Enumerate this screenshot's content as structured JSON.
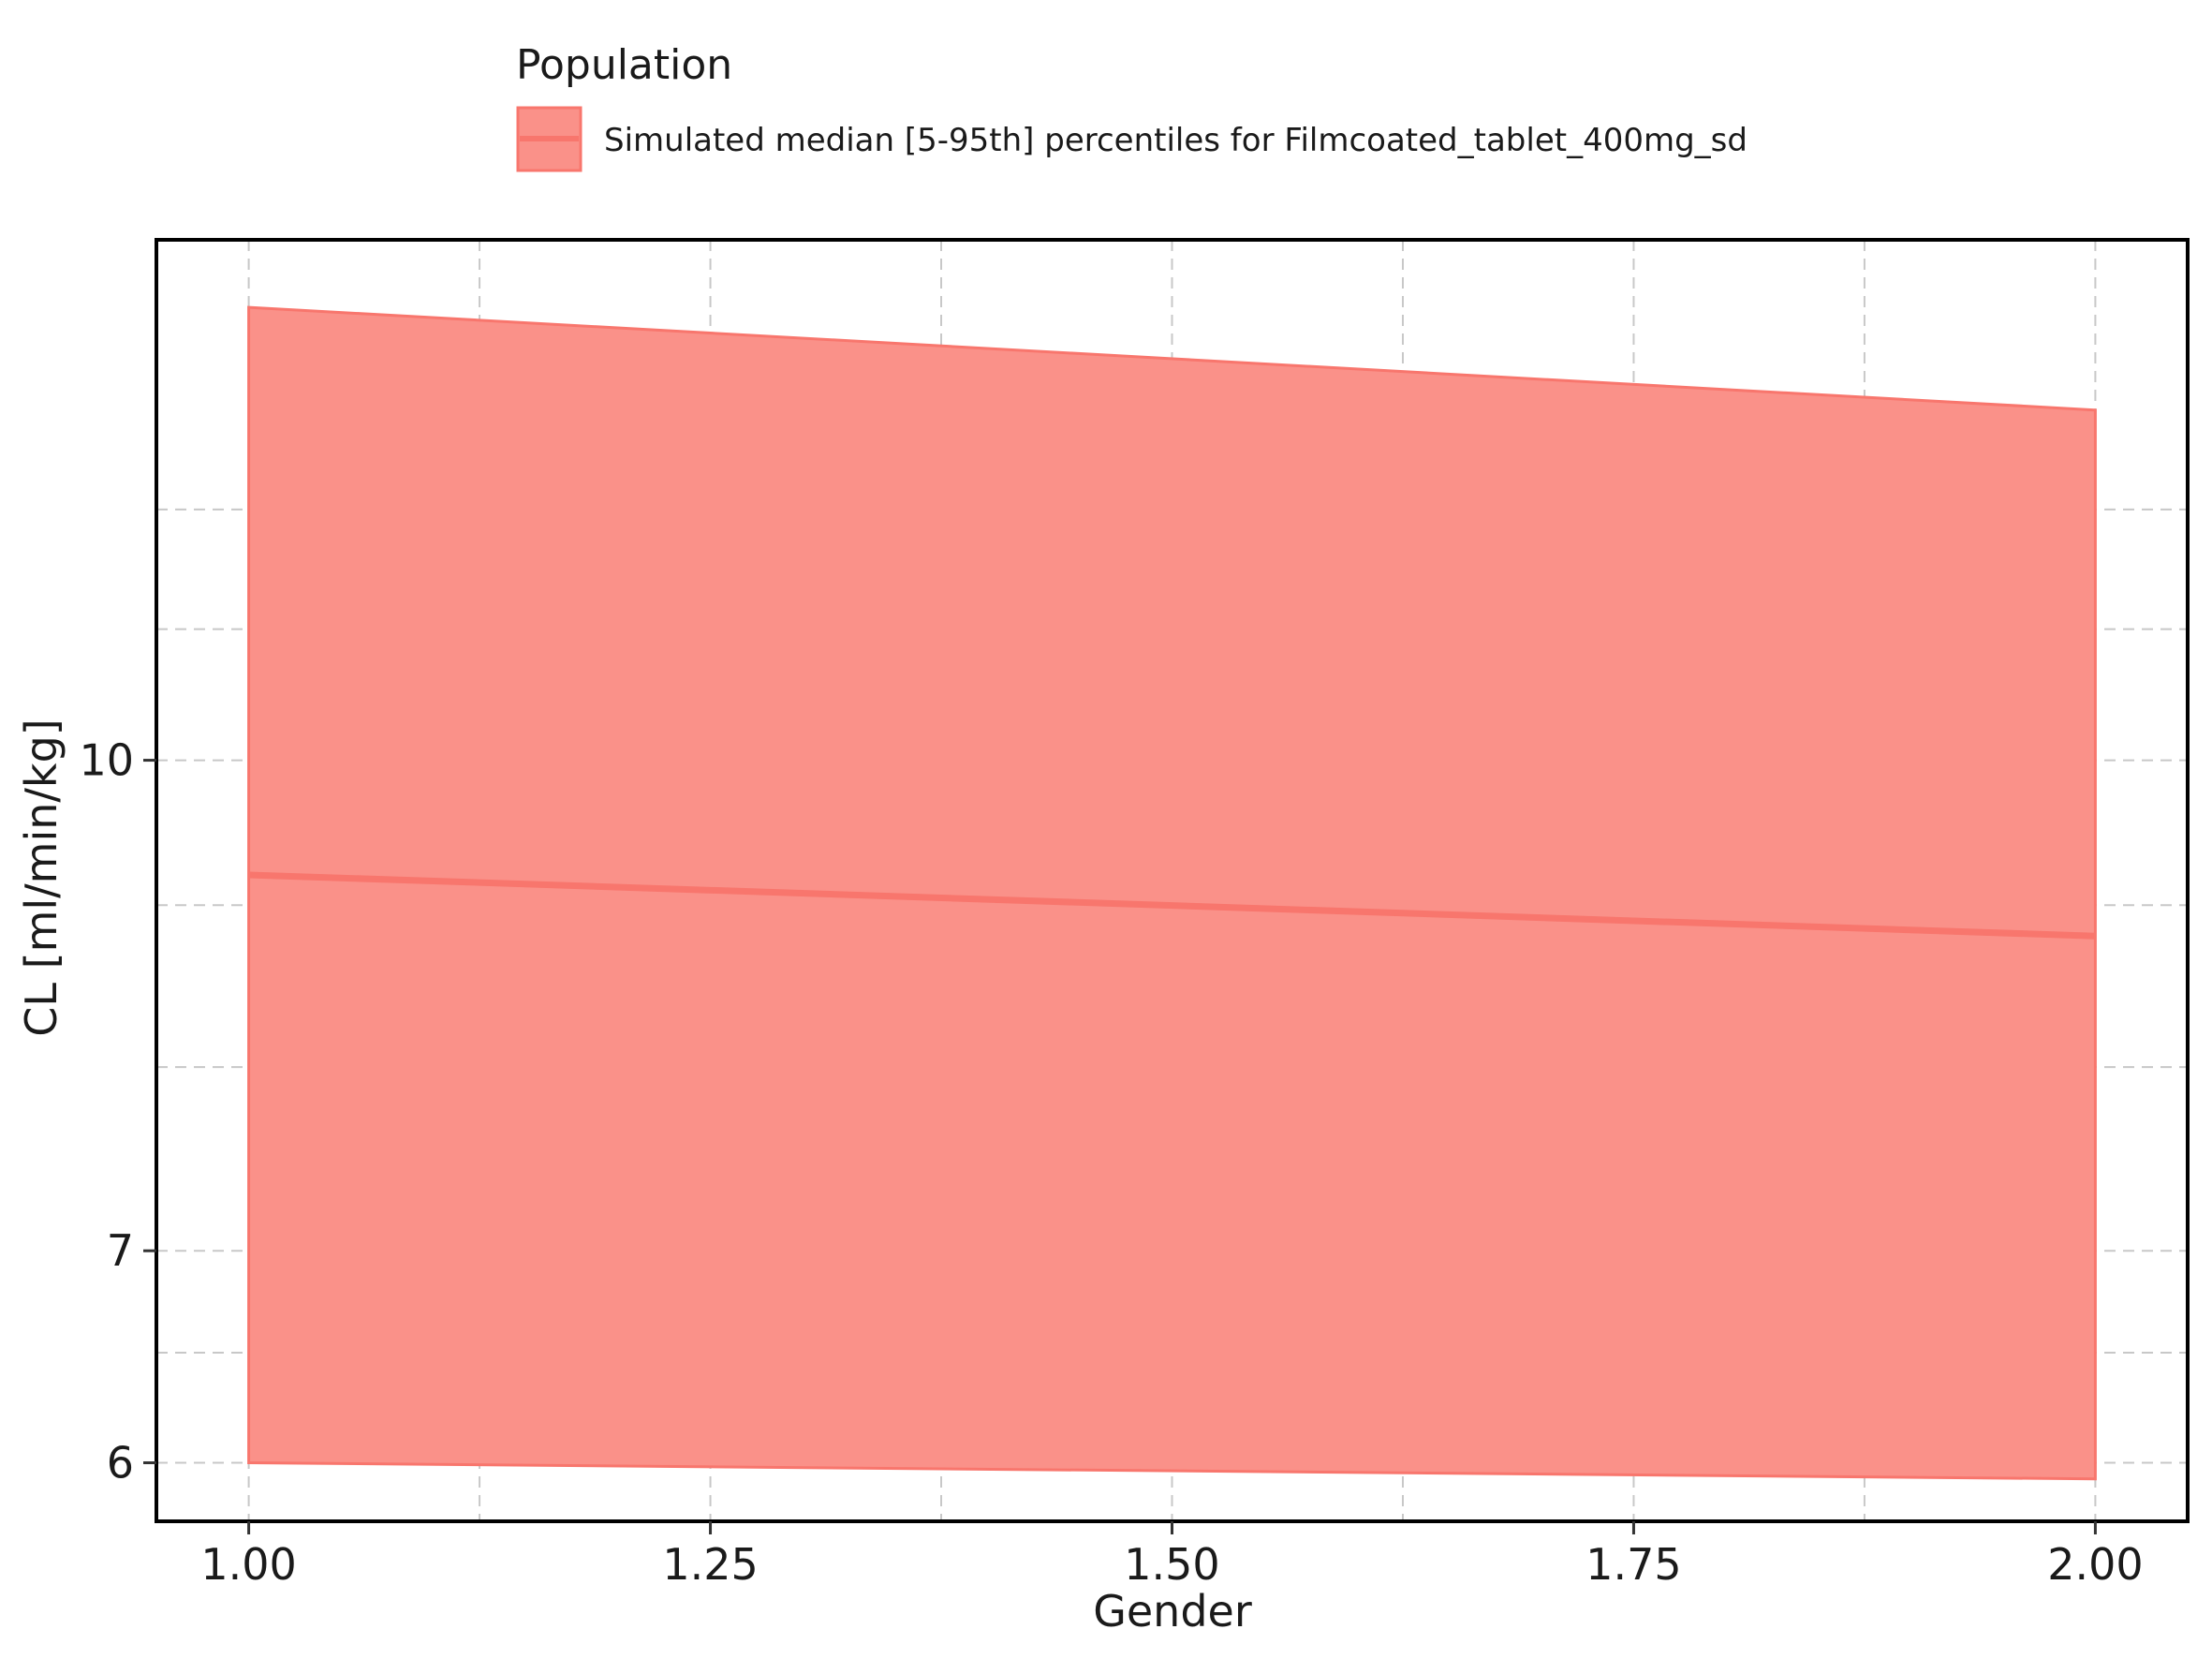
{
  "chart_data": {
    "type": "area",
    "title": "",
    "xlabel": "Gender",
    "ylabel": "CL [ml/min/kg]",
    "yscale": "log",
    "xlim": [
      0.95,
      2.05
    ],
    "ylim": [
      5.75,
      14.6
    ],
    "x_ticks": [
      1.0,
      1.25,
      1.5,
      1.75,
      2.0
    ],
    "x_tick_labels": [
      "1.00",
      "1.25",
      "1.50",
      "1.75",
      "2.00"
    ],
    "y_ticks": [
      6,
      7,
      10
    ],
    "y_tick_labels": [
      "6",
      "7",
      "10"
    ],
    "y_minor_gridlines": [
      6.5,
      8,
      9,
      11,
      12
    ],
    "grid": true,
    "legend": {
      "title": "Population",
      "placement": "top",
      "entries": [
        "Simulated median [5-95th] percentiles for Filmcoated_tablet_400mg_sd"
      ]
    },
    "series": [
      {
        "name": "Simulated median [5-95th] percentiles for Filmcoated_tablet_400mg_sd",
        "x": [
          1.0,
          2.0
        ],
        "median": [
          9.2,
          8.8
        ],
        "lower": [
          6.0,
          5.93
        ],
        "upper": [
          13.9,
          12.9
        ],
        "color": "#f8766d",
        "fill_color": "#fa9189"
      }
    ]
  }
}
